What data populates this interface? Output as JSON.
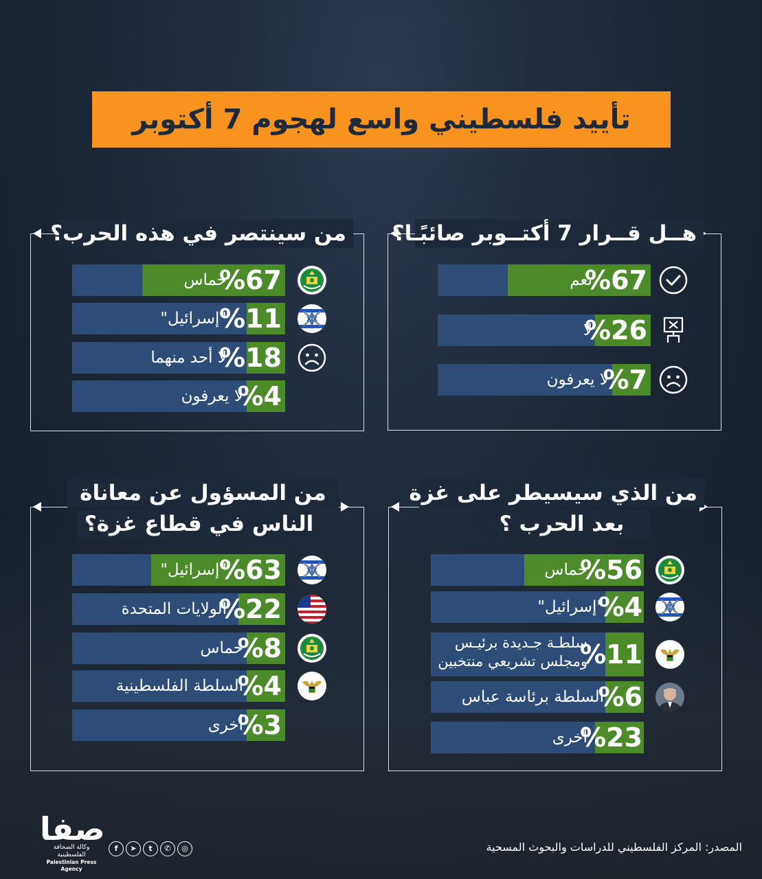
{
  "title": "تأييد فلسطيني واسع لهجوم 7 أكتوبر",
  "colors": {
    "accent": "#f7931e",
    "bar_track": "#2d4c78",
    "bar_fill": "#4b8b2a",
    "background": "#1d2838"
  },
  "chart_data": [
    {
      "type": "bar",
      "title": "هــل قــرار 7 أكتــوبر صائبًـا؟",
      "categories": [
        "نعم",
        "لا",
        "لا يعرفون"
      ],
      "values": [
        67,
        26,
        7
      ],
      "value_labels": [
        "%67",
        "%26",
        "%7"
      ],
      "icons": [
        "check-icon",
        "protest-sign-icon",
        "sad-face-icon"
      ],
      "ylim": [
        0,
        100
      ]
    },
    {
      "type": "bar",
      "title": "من سينتصر في هذه الحرب؟",
      "categories": [
        "حماس",
        "\"إسرائيل\"",
        "لا أحد منهما",
        "لا يعرفون"
      ],
      "values": [
        67,
        11,
        18,
        4
      ],
      "value_labels": [
        "%67",
        "%11",
        "%18",
        "%4"
      ],
      "icons": [
        "hamas-emblem-icon",
        "israel-flag-icon",
        "sad-face-icon",
        "none"
      ],
      "ylim": [
        0,
        100
      ]
    },
    {
      "type": "bar",
      "title": "من الذي سيسيطر على غزة بعد الحرب ؟",
      "title_lines": [
        "من الذي سيسيطر على غزة",
        "بعد الحرب ؟"
      ],
      "categories": [
        "حماس",
        "\"إسرائيل\"",
        "سلطـة جـديدة برئيـس ومجلس تشريعي منتخبين",
        "السلطة برئاسة عباس",
        "أخرى"
      ],
      "category_lines": [
        [
          "حماس"
        ],
        [
          "\"إسرائيل\""
        ],
        [
          "سلطـة جـديدة برئيـس",
          "ومجلس تشريعي منتخبين"
        ],
        [
          "السلطة برئاسة عباس"
        ],
        [
          "أخرى"
        ]
      ],
      "values": [
        56,
        4,
        11,
        6,
        23
      ],
      "value_labels": [
        "%56",
        "%4",
        "%11",
        "%6",
        "%23"
      ],
      "icons": [
        "hamas-emblem-icon",
        "israel-flag-icon",
        "palestine-eagle-icon",
        "abbas-portrait-icon",
        "none"
      ],
      "ylim": [
        0,
        100
      ]
    },
    {
      "type": "bar",
      "title": "من المسؤول عن معاناة الناس في قطاع غزة؟",
      "title_lines": [
        "من المسؤول عن معاناة",
        "الناس في قطاع غزة؟"
      ],
      "categories": [
        "\"إسرائيل\"",
        "الولايات المتحدة",
        "حماس",
        "السلطة الفلسطينية",
        "أخرى"
      ],
      "values": [
        63,
        22,
        8,
        4,
        3
      ],
      "value_labels": [
        "%63",
        "%22",
        "%8",
        "%4",
        "%3"
      ],
      "icons": [
        "israel-flag-icon",
        "usa-flag-icon",
        "hamas-emblem-icon",
        "palestine-eagle-icon",
        "none"
      ],
      "ylim": [
        0,
        100
      ]
    }
  ],
  "footer": {
    "logo_mark": "صفا",
    "logo_ar": "وكالة الصحافة الفلسطينية",
    "logo_en": "Palestinian Press Agency",
    "social_icons": [
      "facebook-icon",
      "telegram-icon",
      "tumblr-icon",
      "whatsapp-icon",
      "instagram-icon"
    ],
    "social_glyphs": [
      "f",
      "➤",
      "t",
      "✆",
      "◎"
    ],
    "source": "المصدر: المركز الفلسطيني للدراسات والبحوث المسحية"
  }
}
